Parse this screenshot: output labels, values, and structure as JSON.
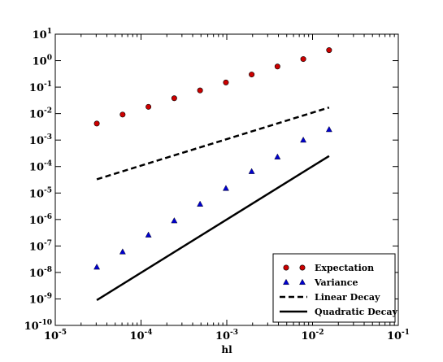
{
  "chart_data": {
    "type": "scatter",
    "title": "",
    "xlabel": "hl",
    "ylabel": "",
    "xscale": "log",
    "yscale": "log",
    "xlim": [
      1e-05,
      0.1
    ],
    "ylim": [
      1e-10,
      10
    ],
    "grid": false,
    "legend_position": "bottom-right",
    "x_ticks": [
      {
        "value": 1e-05,
        "base": "10",
        "exp": "-5"
      },
      {
        "value": 0.0001,
        "base": "10",
        "exp": "-4"
      },
      {
        "value": 0.001,
        "base": "10",
        "exp": "-3"
      },
      {
        "value": 0.01,
        "base": "10",
        "exp": "-2"
      },
      {
        "value": 0.1,
        "base": "10",
        "exp": "-1"
      }
    ],
    "y_ticks": [
      {
        "value": 1e-10,
        "base": "10",
        "exp": "-10"
      },
      {
        "value": 1e-09,
        "base": "10",
        "exp": "-9"
      },
      {
        "value": 1e-08,
        "base": "10",
        "exp": "-8"
      },
      {
        "value": 1e-07,
        "base": "10",
        "exp": "-7"
      },
      {
        "value": 1e-06,
        "base": "10",
        "exp": "-6"
      },
      {
        "value": 1e-05,
        "base": "10",
        "exp": "-5"
      },
      {
        "value": 0.0001,
        "base": "10",
        "exp": "-4"
      },
      {
        "value": 0.001,
        "base": "10",
        "exp": "-3"
      },
      {
        "value": 0.01,
        "base": "10",
        "exp": "-2"
      },
      {
        "value": 0.1,
        "base": "10",
        "exp": "-1"
      },
      {
        "value": 1,
        "base": "10",
        "exp": "0"
      },
      {
        "value": 10,
        "base": "10",
        "exp": "1"
      }
    ],
    "series": [
      {
        "name": "Expectation",
        "kind": "marker",
        "marker": "circle",
        "color": "#cc0000",
        "x": [
          3.05e-05,
          6.1e-05,
          0.000122,
          0.000244,
          0.000488,
          0.000977,
          0.00195,
          0.0039,
          0.0078,
          0.0156
        ],
        "y": [
          0.0042,
          0.0092,
          0.018,
          0.038,
          0.075,
          0.15,
          0.3,
          0.6,
          1.15,
          2.5
        ]
      },
      {
        "name": "Variance",
        "kind": "marker",
        "marker": "triangle",
        "color": "#0000cc",
        "x": [
          3.05e-05,
          6.1e-05,
          0.000122,
          0.000244,
          0.000488,
          0.000977,
          0.00195,
          0.0039,
          0.0078,
          0.0156
        ],
        "y": [
          1.6e-08,
          6e-08,
          2.6e-07,
          9e-07,
          3.8e-06,
          1.5e-05,
          6.5e-05,
          0.00023,
          0.001,
          0.0025
        ]
      },
      {
        "name": "Linear Decay",
        "kind": "line",
        "dash": "dashed",
        "color": "#000000",
        "x": [
          3.05e-05,
          0.0156
        ],
        "y": [
          3.3e-05,
          0.017
        ]
      },
      {
        "name": "Quadratic Decay",
        "kind": "line",
        "dash": "solid",
        "color": "#000000",
        "x": [
          3.05e-05,
          0.0156
        ],
        "y": [
          9e-10,
          0.00025
        ]
      }
    ]
  }
}
